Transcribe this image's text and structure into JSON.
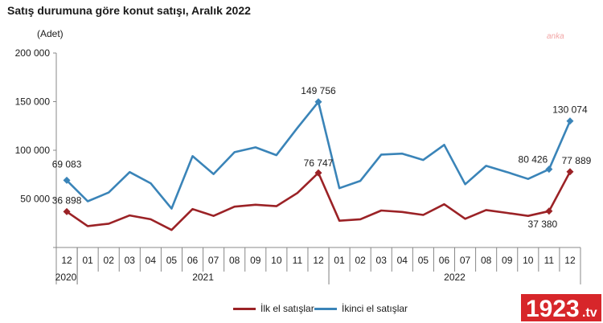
{
  "title": "Satış durumuna göre konut satışı, Aralık 2022",
  "watermark": "anka",
  "logo": {
    "main": "1923",
    "suffix": ".tv"
  },
  "colors": {
    "ilk": "#9b2226",
    "ikinci": "#3a84b8",
    "logo_bg": "#d7262a"
  },
  "chart_data": {
    "type": "line",
    "ylabel": "(Adet)",
    "ylim": [
      0,
      200000
    ],
    "yticks": [
      0,
      50000,
      100000,
      150000,
      200000
    ],
    "ytick_labels": [
      "",
      "50 000",
      "100 000",
      "150 000",
      "200 000"
    ],
    "categories": [
      "12",
      "01",
      "02",
      "03",
      "04",
      "05",
      "06",
      "07",
      "08",
      "09",
      "10",
      "11",
      "12",
      "01",
      "02",
      "03",
      "04",
      "05",
      "06",
      "07",
      "08",
      "09",
      "10",
      "11",
      "12"
    ],
    "year_labels": [
      {
        "label": "2020",
        "start": 0,
        "end": 0
      },
      {
        "label": "2021",
        "start": 1,
        "end": 12
      },
      {
        "label": "2022",
        "start": 13,
        "end": 24
      }
    ],
    "series": [
      {
        "name": "İlk el satışlar",
        "color": "#9b2226",
        "values": [
          36898,
          22000,
          24500,
          33000,
          29000,
          18000,
          39500,
          32500,
          42000,
          44000,
          42500,
          56000,
          76747,
          27500,
          29000,
          38000,
          36500,
          33500,
          44500,
          29500,
          38500,
          35500,
          32500,
          37380,
          77889
        ]
      },
      {
        "name": "İkinci el satışlar",
        "color": "#3a84b8",
        "values": [
          69083,
          47500,
          56500,
          77500,
          66000,
          40000,
          94000,
          75500,
          98000,
          103000,
          95000,
          123000,
          149756,
          61000,
          68500,
          95500,
          96500,
          90000,
          105500,
          65000,
          84000,
          77500,
          70500,
          80426,
          130074
        ]
      }
    ],
    "data_labels": [
      {
        "series": 0,
        "index": 0,
        "text": "36 898"
      },
      {
        "series": 0,
        "index": 12,
        "text": "76 747"
      },
      {
        "series": 0,
        "index": 23,
        "text": "37 380"
      },
      {
        "series": 0,
        "index": 24,
        "text": "77 889"
      },
      {
        "series": 1,
        "index": 0,
        "text": "69 083"
      },
      {
        "series": 1,
        "index": 12,
        "text": "149 756"
      },
      {
        "series": 1,
        "index": 23,
        "text": "80 426"
      },
      {
        "series": 1,
        "index": 24,
        "text": "130 074"
      }
    ],
    "markers": [
      0,
      12,
      23,
      24
    ],
    "grid": false,
    "legend_position": "bottom-center"
  }
}
